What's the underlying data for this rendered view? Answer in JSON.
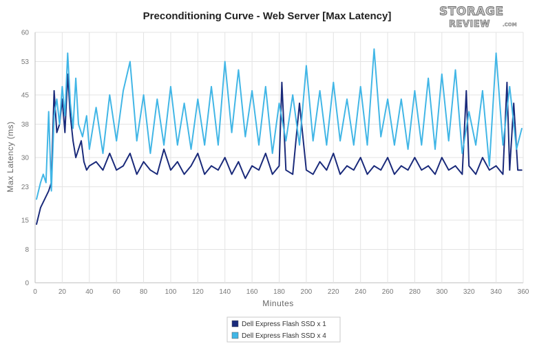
{
  "watermark": {
    "top": "STORAGE",
    "bottom": "REVIEW",
    "suffix": ".COM"
  },
  "chart_data": {
    "type": "line",
    "title": "Preconditioning Curve - Web Server [Max Latency]",
    "xlabel": "Minutes",
    "ylabel": "Max Latency (ms)",
    "xlim": [
      0,
      360
    ],
    "ylim": [
      0,
      60
    ],
    "x_ticks": [
      "0",
      "20",
      "40",
      "60",
      "80",
      "100",
      "120",
      "140",
      "160",
      "180",
      "200",
      "220",
      "240",
      "260",
      "280",
      "300",
      "320",
      "340",
      "360"
    ],
    "y_ticks": [
      "0",
      "8",
      "15",
      "23",
      "30",
      "38",
      "45",
      "53",
      "60"
    ],
    "grid": true,
    "legend_position": "bottom-center",
    "series": [
      {
        "name": "Dell Express Flash SSD x 1",
        "color": "#1a2a7a",
        "x": [
          1,
          4,
          7,
          10,
          12,
          14,
          16,
          18,
          20,
          22,
          24,
          26,
          28,
          30,
          32,
          34,
          36,
          38,
          40,
          45,
          50,
          55,
          60,
          65,
          70,
          75,
          80,
          85,
          90,
          95,
          100,
          105,
          110,
          115,
          120,
          125,
          130,
          135,
          140,
          145,
          150,
          155,
          160,
          165,
          170,
          175,
          180,
          182,
          185,
          190,
          195,
          200,
          205,
          210,
          215,
          220,
          225,
          230,
          235,
          240,
          245,
          250,
          255,
          260,
          265,
          270,
          275,
          280,
          285,
          290,
          295,
          300,
          305,
          310,
          315,
          318,
          320,
          325,
          330,
          335,
          340,
          345,
          348,
          350,
          353,
          356,
          359
        ],
        "values": [
          14,
          18,
          20,
          22,
          24,
          46,
          36,
          38,
          44,
          36,
          50,
          40,
          34,
          30,
          32,
          34,
          29,
          27,
          28,
          29,
          27,
          31,
          27,
          28,
          31,
          26,
          29,
          27,
          26,
          32,
          27,
          29,
          26,
          28,
          31,
          26,
          28,
          27,
          30,
          26,
          29,
          25,
          28,
          27,
          31,
          26,
          28,
          48,
          27,
          26,
          43,
          27,
          26,
          29,
          27,
          31,
          26,
          28,
          27,
          30,
          26,
          28,
          27,
          30,
          26,
          28,
          27,
          30,
          27,
          28,
          26,
          30,
          27,
          28,
          26,
          46,
          28,
          26,
          30,
          27,
          28,
          26,
          48,
          27,
          43,
          27,
          27
        ]
      },
      {
        "name": "Dell Express Flash SSD x 4",
        "color": "#41b6e6",
        "x": [
          1,
          4,
          6,
          8,
          10,
          12,
          14,
          16,
          18,
          20,
          22,
          24,
          26,
          28,
          30,
          32,
          35,
          38,
          40,
          45,
          50,
          55,
          60,
          65,
          70,
          75,
          80,
          85,
          90,
          95,
          100,
          105,
          110,
          115,
          120,
          125,
          130,
          135,
          140,
          145,
          150,
          155,
          160,
          165,
          170,
          175,
          180,
          185,
          190,
          195,
          200,
          205,
          210,
          215,
          220,
          225,
          230,
          235,
          240,
          245,
          250,
          255,
          260,
          265,
          270,
          275,
          280,
          285,
          290,
          295,
          300,
          305,
          310,
          315,
          320,
          325,
          330,
          335,
          340,
          345,
          350,
          355,
          359
        ],
        "values": [
          20,
          24,
          26,
          24,
          41,
          22,
          40,
          44,
          38,
          47,
          40,
          55,
          43,
          37,
          49,
          38,
          35,
          40,
          32,
          42,
          31,
          45,
          34,
          46,
          53,
          34,
          45,
          31,
          44,
          33,
          47,
          33,
          43,
          32,
          44,
          33,
          47,
          33,
          53,
          36,
          51,
          35,
          46,
          33,
          47,
          31,
          43,
          34,
          45,
          33,
          52,
          34,
          46,
          33,
          48,
          34,
          44,
          33,
          47,
          33,
          56,
          35,
          44,
          33,
          44,
          32,
          46,
          33,
          49,
          32,
          50,
          34,
          51,
          31,
          41,
          33,
          46,
          28,
          55,
          33,
          47,
          32,
          37
        ]
      }
    ]
  }
}
